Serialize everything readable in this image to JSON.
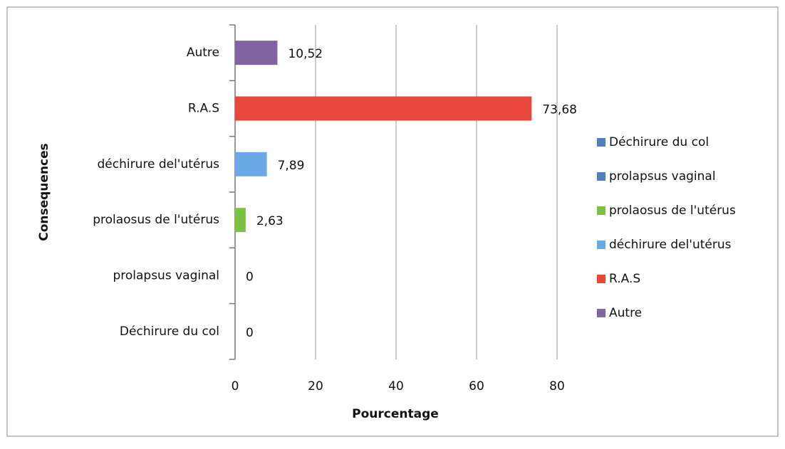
{
  "chart_data": {
    "type": "bar",
    "orientation": "horizontal",
    "categories": [
      "Déchirure du col",
      "prolapsus vaginal",
      "prolaosus de l'utérus",
      "déchirure del'utérus",
      "R.A.S",
      "Autre"
    ],
    "values": [
      0,
      0,
      2.63,
      7.89,
      73.68,
      10.52
    ],
    "value_labels": [
      "0",
      "0",
      "2,63",
      "7,89",
      "73,68",
      "10,52"
    ],
    "colors": [
      "#4f81bd",
      "#4f81bd",
      "#7dc142",
      "#6aa9e6",
      "#e8463a",
      "#8064a2"
    ],
    "xlabel": "Pourcentage",
    "ylabel": "Consequences",
    "xlim": [
      0,
      80
    ],
    "xticks": [
      0,
      20,
      40,
      60,
      80
    ],
    "grid": true,
    "legend": "right"
  }
}
